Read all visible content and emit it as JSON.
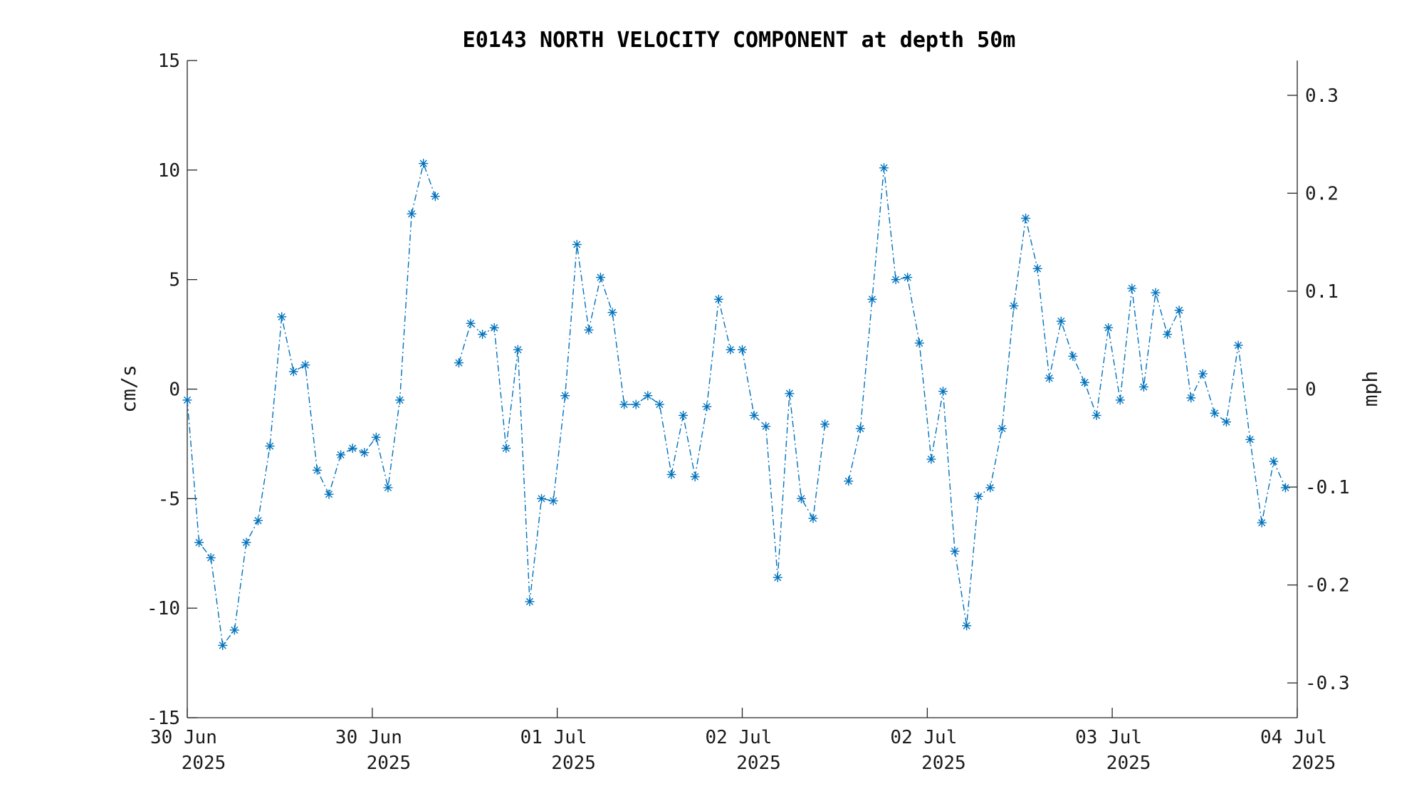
{
  "chart_data": {
    "type": "line",
    "title": "E0143 NORTH VELOCITY COMPONENT at depth 50m",
    "ylabel": "cm/s",
    "y2label": "mph",
    "ylim": [
      -15,
      15
    ],
    "y2lim": [
      -0.3355,
      0.3355
    ],
    "yticks": [
      {
        "value": 15,
        "label": "15"
      },
      {
        "value": 10,
        "label": "10"
      },
      {
        "value": 5,
        "label": "5"
      },
      {
        "value": 0,
        "label": "0"
      },
      {
        "value": -5,
        "label": "-5"
      },
      {
        "value": -10,
        "label": "-10"
      },
      {
        "value": -15,
        "label": "-15"
      }
    ],
    "y2ticks": [
      {
        "value": 0.3,
        "label": "0.3"
      },
      {
        "value": 0.2,
        "label": "0.2"
      },
      {
        "value": 0.1,
        "label": "0.1"
      },
      {
        "value": 0,
        "label": "0"
      },
      {
        "value": -0.1,
        "label": "-0.1"
      },
      {
        "value": -0.2,
        "label": "-0.2"
      },
      {
        "value": -0.3,
        "label": "-0.3"
      }
    ],
    "xlim": [
      0,
      94
    ],
    "xticks": [
      {
        "value": 0,
        "line1": "30 Jun",
        "line2": "2025"
      },
      {
        "value": 15.67,
        "line1": "30 Jun",
        "line2": "2025"
      },
      {
        "value": 31.33,
        "line1": "01 Jul",
        "line2": "2025"
      },
      {
        "value": 47,
        "line1": "02 Jul",
        "line2": "2025"
      },
      {
        "value": 62.67,
        "line1": "02 Jul",
        "line2": "2025"
      },
      {
        "value": 78.33,
        "line1": "03 Jul",
        "line2": "2025"
      },
      {
        "value": 94,
        "line1": "04 Jul",
        "line2": "2025"
      }
    ],
    "marker": "asterisk",
    "line_style": "dash-dot",
    "color": "#0072BD",
    "series": [
      {
        "x": [
          0,
          1,
          2,
          3,
          4,
          5,
          6,
          7,
          8,
          9,
          10,
          11,
          12,
          13,
          14,
          15,
          16,
          17,
          18,
          19,
          20,
          21,
          22,
          23,
          24,
          25,
          26,
          27,
          28,
          29,
          30,
          31,
          32,
          33,
          34,
          35,
          36,
          37,
          38,
          39,
          40,
          41,
          42,
          43,
          44,
          45,
          46,
          47,
          48,
          49,
          50,
          51,
          52,
          53,
          54,
          55,
          56,
          57,
          58,
          59,
          60,
          61,
          62,
          63,
          64,
          65,
          66,
          67,
          68,
          69,
          70,
          71,
          72,
          73,
          74,
          75,
          76,
          77,
          78,
          79,
          80,
          81,
          82,
          83,
          84,
          85,
          86,
          87,
          88,
          89,
          90,
          91,
          92,
          93,
          94
        ],
        "y": [
          -0.5,
          -7.0,
          -7.7,
          -11.7,
          -11.0,
          -7.0,
          -6.0,
          -2.6,
          3.3,
          0.8,
          1.1,
          -3.7,
          -4.8,
          -3.0,
          -2.7,
          -2.9,
          -2.2,
          -4.5,
          -0.5,
          8.0,
          10.3,
          8.8,
          null,
          1.2,
          3.0,
          2.5,
          2.8,
          -2.7,
          1.8,
          -9.7,
          -5.0,
          -5.1,
          -0.3,
          6.6,
          2.7,
          5.1,
          3.5,
          -0.7,
          -0.7,
          -0.3,
          -0.7,
          -3.9,
          -1.2,
          -4.0,
          -0.8,
          4.1,
          1.8,
          1.8,
          -1.2,
          -1.7,
          -8.6,
          -0.2,
          -5.0,
          -5.9,
          -1.6,
          null,
          -4.2,
          -1.8,
          4.1,
          10.1,
          5.0,
          5.1,
          2.1,
          -3.2,
          -0.1,
          -7.4,
          -10.8,
          -4.9,
          -4.5,
          -1.8,
          3.8,
          7.8,
          5.5,
          0.5,
          3.1,
          1.5,
          0.3,
          -1.2,
          2.8,
          -0.5,
          4.6,
          0.1,
          4.4,
          2.5,
          3.6,
          -0.4,
          0.7,
          -1.1,
          -1.5,
          2.0,
          -2.3,
          -6.1,
          -3.3,
          -4.5,
          null
        ]
      }
    ]
  }
}
